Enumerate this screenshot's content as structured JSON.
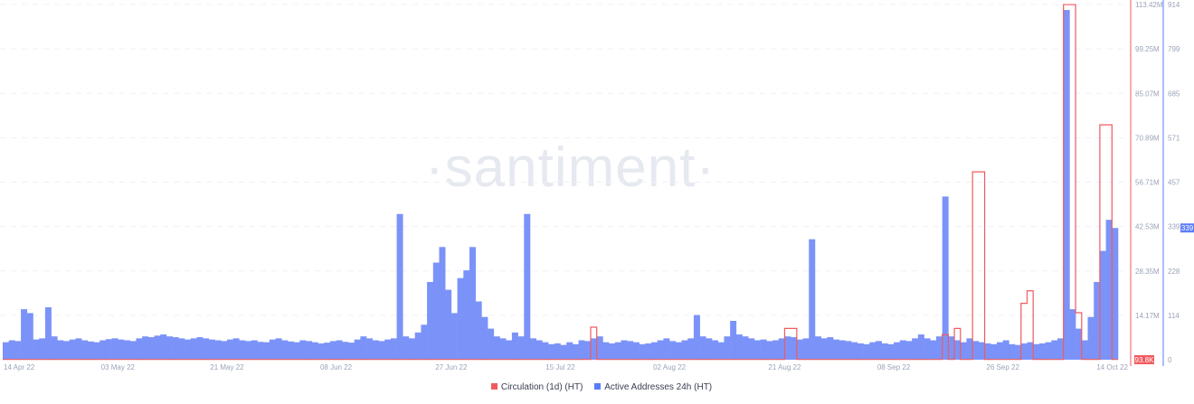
{
  "watermark": "·santiment·",
  "chart_data": {
    "type": "bar+line",
    "start_date": "2022-04-14",
    "x_ticks": [
      "14 Apr 22",
      "03 May 22",
      "21 May 22",
      "08 Jun 22",
      "27 Jun 22",
      "15 Jul 22",
      "02 Aug 22",
      "21 Aug 22",
      "08 Sep 22",
      "26 Sep 22",
      "14 Oct 22"
    ],
    "x_tick_day_index": [
      0,
      19,
      37,
      55,
      74,
      92,
      110,
      129,
      147,
      165,
      183
    ],
    "y_left_ticks": [
      "113.42M",
      "99.25M",
      "85.07M",
      "70.89M",
      "56.71M",
      "42.53M",
      "28.35M",
      "14.17M"
    ],
    "y_left_range_millions": [
      0,
      113.42
    ],
    "y_right_ticks": [
      "914",
      "799",
      "685",
      "571",
      "457",
      "339",
      "228",
      "114",
      "0"
    ],
    "y_right_range": [
      0,
      914
    ],
    "last_values": {
      "circulation": "93.8K",
      "active_addresses": "339"
    },
    "grid": true,
    "legend_position": "bottom",
    "series": [
      {
        "name": "Circulation (1d) (HT)",
        "color": "#f05a5f",
        "type": "step-line",
        "unit": "millions",
        "values": [
          0.09,
          0.09,
          0.09,
          0.09,
          0.09,
          0.09,
          0.09,
          0.09,
          0.09,
          0.09,
          0.09,
          0.09,
          0.09,
          0.09,
          0.09,
          0.09,
          0.09,
          0.09,
          0.09,
          0.09,
          0.09,
          0.09,
          0.09,
          0.09,
          0.09,
          0.09,
          0.09,
          0.09,
          0.09,
          0.09,
          0.09,
          0.09,
          0.09,
          0.09,
          0.09,
          0.09,
          0.09,
          0.09,
          0.09,
          0.09,
          0.09,
          0.09,
          0.09,
          0.09,
          0.09,
          0.09,
          0.09,
          0.09,
          0.09,
          0.09,
          0.09,
          0.09,
          0.09,
          0.09,
          0.09,
          0.09,
          0.09,
          0.09,
          0.09,
          0.09,
          0.09,
          0.09,
          0.09,
          0.09,
          0.09,
          0.09,
          0.09,
          0.09,
          0.09,
          0.09,
          0.09,
          0.09,
          0.09,
          0.09,
          0.09,
          0.09,
          0.09,
          0.09,
          0.09,
          0.09,
          0.09,
          0.09,
          0.09,
          0.09,
          0.09,
          0.09,
          0.09,
          0.09,
          0.09,
          0.09,
          0.09,
          0.09,
          0.09,
          0.09,
          0.09,
          0.09,
          0.09,
          10.4,
          0.09,
          0.09,
          0.09,
          0.09,
          0.09,
          0.09,
          0.09,
          0.09,
          0.09,
          0.09,
          0.09,
          0.09,
          0.09,
          0.09,
          0.09,
          0.09,
          0.09,
          0.09,
          0.09,
          0.09,
          0.09,
          0.09,
          0.09,
          0.09,
          0.09,
          0.09,
          0.09,
          0.09,
          0.09,
          0.09,
          0.09,
          10,
          10,
          0.09,
          0.09,
          0.09,
          0.09,
          0.09,
          0.09,
          0.09,
          0.09,
          0.09,
          0.09,
          0.09,
          0.09,
          0.09,
          0.09,
          0.09,
          0.09,
          0.09,
          0.09,
          0.09,
          0.09,
          0.09,
          0.09,
          0.09,
          0.09,
          8,
          0.09,
          10,
          0.09,
          0.09,
          60,
          60,
          0.09,
          0.09,
          0.09,
          0.09,
          0.09,
          0.09,
          18,
          22,
          0.09,
          0.09,
          0.09,
          0.09,
          0.09,
          113.4,
          113.4,
          15,
          0.09,
          0.09,
          0.09,
          75,
          75,
          0.09
        ]
      },
      {
        "name": "Active Addresses 24h (HT)",
        "color": "#5b7cf7",
        "type": "bar",
        "values": [
          45,
          50,
          48,
          130,
          120,
          52,
          55,
          135,
          60,
          50,
          48,
          52,
          55,
          50,
          47,
          45,
          50,
          53,
          55,
          52,
          50,
          48,
          55,
          60,
          58,
          62,
          65,
          60,
          58,
          55,
          52,
          55,
          58,
          55,
          52,
          50,
          48,
          52,
          55,
          50,
          48,
          50,
          46,
          45,
          52,
          55,
          50,
          47,
          45,
          50,
          48,
          45,
          42,
          44,
          48,
          50,
          46,
          44,
          52,
          60,
          55,
          50,
          48,
          52,
          55,
          375,
          60,
          55,
          70,
          90,
          200,
          250,
          290,
          180,
          120,
          210,
          230,
          290,
          150,
          110,
          80,
          60,
          55,
          50,
          70,
          60,
          375,
          55,
          50,
          45,
          40,
          42,
          38,
          45,
          40,
          50,
          48,
          55,
          60,
          45,
          42,
          45,
          50,
          48,
          45,
          40,
          42,
          45,
          50,
          55,
          48,
          45,
          50,
          55,
          115,
          60,
          55,
          50,
          45,
          60,
          100,
          65,
          60,
          55,
          50,
          52,
          48,
          50,
          55,
          60,
          58,
          52,
          55,
          310,
          60,
          55,
          58,
          52,
          50,
          48,
          45,
          42,
          40,
          45,
          48,
          42,
          40,
          45,
          50,
          48,
          55,
          65,
          55,
          50,
          60,
          420,
          60,
          50,
          45,
          55,
          48,
          45,
          42,
          40,
          45,
          50,
          40,
          38,
          42,
          45,
          40,
          42,
          45,
          50,
          55,
          900,
          130,
          80,
          50,
          110,
          200,
          280,
          360,
          339
        ]
      }
    ]
  }
}
